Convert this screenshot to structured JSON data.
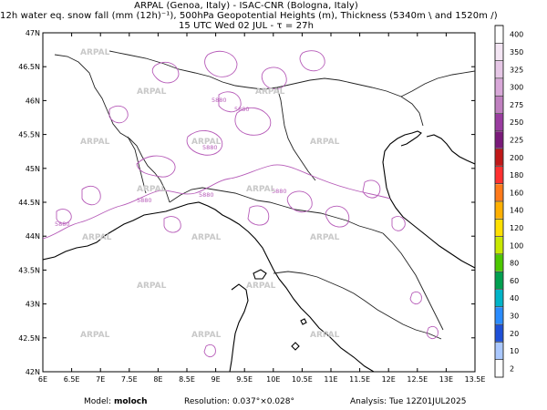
{
  "header": {
    "line1": "ARPAL (Genoa, Italy)  -  ISAC-CNR (Bologna, Italy)",
    "line2": "12h water eq. snow fall (mm (12h)⁻¹), 500hPa Geopotential Heights (m), Thickness (5340m \\ and 1520m /)",
    "line3": "15 UTC Wed 02 JUL  -  τ = 27h"
  },
  "axes": {
    "lat_labels": [
      "47N",
      "46.5N",
      "46N",
      "45.5N",
      "45N",
      "44.5N",
      "44N",
      "43.5N",
      "43N",
      "42.5N",
      "42N"
    ],
    "lon_labels": [
      "6E",
      "6.5E",
      "7E",
      "7.5E",
      "8E",
      "8.5E",
      "9E",
      "9.5E",
      "10E",
      "10.5E",
      "11E",
      "11.5E",
      "12E",
      "12.5E",
      "13E",
      "13.5E"
    ]
  },
  "colorbar": {
    "levels": [
      "400",
      "350",
      "325",
      "300",
      "275",
      "250",
      "225",
      "200",
      "180",
      "160",
      "140",
      "120",
      "100",
      "80",
      "60",
      "40",
      "30",
      "20",
      "10",
      "2"
    ],
    "colors": [
      "#ffffff",
      "#f4e6f4",
      "#e6c7e6",
      "#d9a8d9",
      "#c080c0",
      "#9a3ca0",
      "#7a1a7a",
      "#c01818",
      "#ff3030",
      "#ff7a1a",
      "#ffb000",
      "#ffe000",
      "#c8e800",
      "#4cc800",
      "#00a050",
      "#00b4c8",
      "#2a8cff",
      "#1e50d8",
      "#aac8ff",
      "#ffffff"
    ]
  },
  "contour_label": "5880",
  "watermark": "ARPAL",
  "footer": {
    "model_label": "Model:",
    "model_value": "moloch",
    "resolution_label": "Resolution:",
    "resolution_value": "0.037°×0.028°",
    "analysis_label": "Analysis:",
    "analysis_value": "Tue 12Z01JUL2025"
  },
  "colors": {
    "contour": "#b65bb8",
    "coast": "#000000",
    "border": "#333333",
    "watermark": "#c8c8c8"
  }
}
